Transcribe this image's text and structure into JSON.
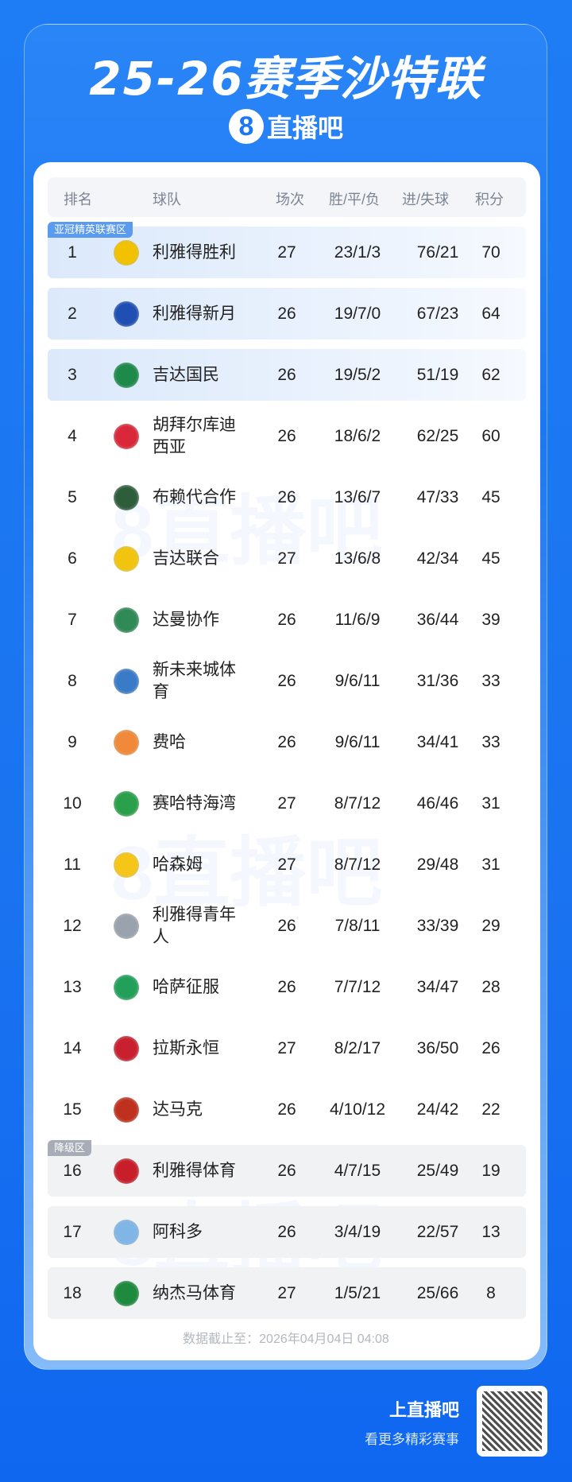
{
  "header": {
    "title": "25-26赛季沙特联",
    "brand_icon": "8",
    "brand_name": "直播吧"
  },
  "columns": [
    "排名",
    "球队",
    "场次",
    "胜/平/负",
    "进/失球",
    "积分"
  ],
  "zones": {
    "acl": "亚冠精英联赛区",
    "relegation": "降级区"
  },
  "rows": [
    {
      "rank": "1",
      "team": "利雅得胜利",
      "played": "27",
      "wdl": "23/1/3",
      "goals": "76/21",
      "pts": "70",
      "zone": "acl",
      "color": "#f2c200"
    },
    {
      "rank": "2",
      "team": "利雅得新月",
      "played": "26",
      "wdl": "19/7/0",
      "goals": "67/23",
      "pts": "64",
      "zone": "acl",
      "color": "#1f4fb3"
    },
    {
      "rank": "3",
      "team": "吉达国民",
      "played": "26",
      "wdl": "19/5/2",
      "goals": "51/19",
      "pts": "62",
      "zone": "acl",
      "color": "#1d8a4a"
    },
    {
      "rank": "4",
      "team": "胡拜尔库迪西亚",
      "played": "26",
      "wdl": "18/6/2",
      "goals": "62/25",
      "pts": "60",
      "zone": "",
      "color": "#d8283a"
    },
    {
      "rank": "5",
      "team": "布赖代合作",
      "played": "26",
      "wdl": "13/6/7",
      "goals": "47/33",
      "pts": "45",
      "zone": "",
      "color": "#2e5d3c"
    },
    {
      "rank": "6",
      "team": "吉达联合",
      "played": "27",
      "wdl": "13/6/8",
      "goals": "42/34",
      "pts": "45",
      "zone": "",
      "color": "#f1c40f"
    },
    {
      "rank": "7",
      "team": "达曼协作",
      "played": "26",
      "wdl": "11/6/9",
      "goals": "36/44",
      "pts": "39",
      "zone": "",
      "color": "#2f8a55"
    },
    {
      "rank": "8",
      "team": "新未来城体育",
      "played": "26",
      "wdl": "9/6/11",
      "goals": "31/36",
      "pts": "33",
      "zone": "",
      "color": "#3a7bc8"
    },
    {
      "rank": "9",
      "team": "费哈",
      "played": "26",
      "wdl": "9/6/11",
      "goals": "34/41",
      "pts": "33",
      "zone": "",
      "color": "#f08a3a"
    },
    {
      "rank": "10",
      "team": "赛哈特海湾",
      "played": "27",
      "wdl": "8/7/12",
      "goals": "46/46",
      "pts": "31",
      "zone": "",
      "color": "#2aa04a"
    },
    {
      "rank": "11",
      "team": "哈森姆",
      "played": "27",
      "wdl": "8/7/12",
      "goals": "29/48",
      "pts": "31",
      "zone": "",
      "color": "#f5c518"
    },
    {
      "rank": "12",
      "team": "利雅得青年人",
      "played": "26",
      "wdl": "7/8/11",
      "goals": "33/39",
      "pts": "29",
      "zone": "",
      "color": "#9aa3ad"
    },
    {
      "rank": "13",
      "team": "哈萨征服",
      "played": "26",
      "wdl": "7/7/12",
      "goals": "34/47",
      "pts": "28",
      "zone": "",
      "color": "#22a05a"
    },
    {
      "rank": "14",
      "team": "拉斯永恒",
      "played": "27",
      "wdl": "8/2/17",
      "goals": "36/50",
      "pts": "26",
      "zone": "",
      "color": "#c8202e"
    },
    {
      "rank": "15",
      "team": "达马克",
      "played": "26",
      "wdl": "4/10/12",
      "goals": "24/42",
      "pts": "22",
      "zone": "",
      "color": "#c0301e"
    },
    {
      "rank": "16",
      "team": "利雅得体育",
      "played": "26",
      "wdl": "4/7/15",
      "goals": "25/49",
      "pts": "19",
      "zone": "relegation",
      "color": "#c81e2a"
    },
    {
      "rank": "17",
      "team": "阿科多",
      "played": "26",
      "wdl": "3/4/19",
      "goals": "22/57",
      "pts": "13",
      "zone": "relegation",
      "color": "#7fb6e6"
    },
    {
      "rank": "18",
      "team": "纳杰马体育",
      "played": "27",
      "wdl": "1/5/21",
      "goals": "25/66",
      "pts": "8",
      "zone": "relegation",
      "color": "#1e8a3e"
    }
  ],
  "footer": {
    "updated": "数据截止至：2026年04月04日 04:08"
  },
  "cta": {
    "title": "上直播吧",
    "subtitle": "看更多精彩赛事"
  },
  "watermark": "8直播吧"
}
